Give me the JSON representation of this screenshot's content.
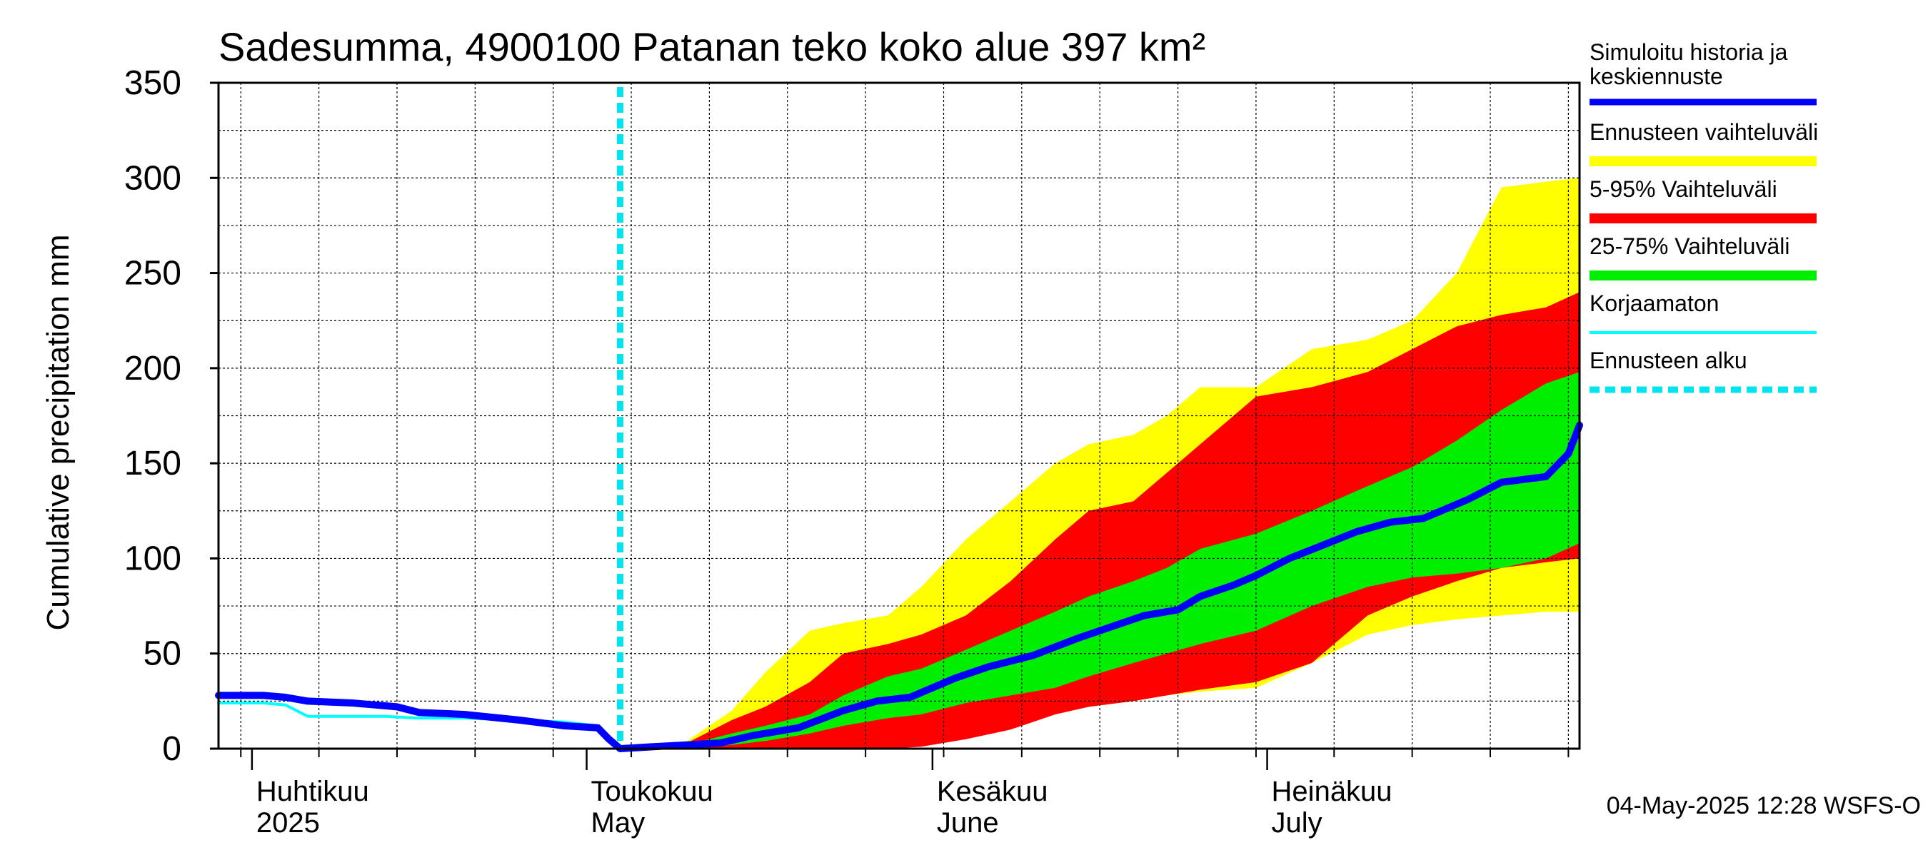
{
  "chart_data": {
    "type": "area",
    "title": "Sadesumma, 4900100 Patanan teko koko alue 397 km²",
    "ylabel": "Cumulative precipitation   mm",
    "ylim": [
      0,
      350
    ],
    "y_ticks": [
      0,
      50,
      100,
      150,
      200,
      250,
      300,
      350
    ],
    "xlim": [
      "2025-03-29",
      "2025-07-29"
    ],
    "grid": true,
    "legend_position": "right",
    "month_labels": [
      {
        "fi": "Huhtikuu",
        "en": "2025",
        "date": "2025-04-01"
      },
      {
        "fi": "Toukokuu",
        "en": "May",
        "date": "2025-05-01"
      },
      {
        "fi": "Kesäkuu",
        "en": "June",
        "date": "2025-06-01"
      },
      {
        "fi": "Heinäkuu",
        "en": "July",
        "date": "2025-07-01"
      }
    ],
    "forecast_start": "2025-05-04",
    "timestamp": "04-May-2025 12:28 WSFS-O",
    "colors": {
      "median": "#0000ff",
      "band_full": "#ffff00",
      "band_5_95": "#ff0000",
      "band_25_75": "#00ee00",
      "uncorrected": "#00ffff",
      "forecast_start": "#00e5ee"
    },
    "legend": [
      {
        "label": "Simuloitu historia ja",
        "label2": "keskiennuste",
        "kind": "median"
      },
      {
        "label": "Ennusteen vaihteluväli",
        "kind": "band_full"
      },
      {
        "label": "5-95% Vaihteluväli",
        "kind": "band_5_95"
      },
      {
        "label": "25-75% Vaihteluväli",
        "kind": "band_25_75"
      },
      {
        "label": "Korjaamaton",
        "kind": "uncorrected"
      },
      {
        "label": "Ennusteen alku",
        "kind": "forecast_start"
      }
    ],
    "series": [
      {
        "name": "Simuloitu historia ja keskiennuste",
        "x": [
          "2025-03-29",
          "2025-04-02",
          "2025-04-04",
          "2025-04-06",
          "2025-04-10",
          "2025-04-12",
          "2025-04-14",
          "2025-04-16",
          "2025-04-20",
          "2025-04-25",
          "2025-04-29",
          "2025-05-02",
          "2025-05-03",
          "2025-05-04",
          "2025-05-07",
          "2025-05-10",
          "2025-05-13",
          "2025-05-16",
          "2025-05-20",
          "2025-05-24",
          "2025-05-27",
          "2025-05-30",
          "2025-06-03",
          "2025-06-06",
          "2025-06-10",
          "2025-06-14",
          "2025-06-17",
          "2025-06-20",
          "2025-06-23",
          "2025-06-25",
          "2025-06-28",
          "2025-06-30",
          "2025-07-03",
          "2025-07-06",
          "2025-07-09",
          "2025-07-12",
          "2025-07-15",
          "2025-07-19",
          "2025-07-22",
          "2025-07-26",
          "2025-07-28",
          "2025-07-29"
        ],
        "values": [
          28,
          28,
          27,
          25,
          24,
          23,
          22,
          19,
          18,
          15,
          12,
          11,
          5,
          0,
          1,
          2,
          3,
          7,
          11,
          20,
          25,
          27,
          37,
          43,
          49,
          58,
          64,
          70,
          73,
          80,
          86,
          91,
          100,
          107,
          114,
          119,
          121,
          131,
          140,
          143,
          155,
          170
        ]
      },
      {
        "name": "Korjaamaton",
        "x": [
          "2025-03-29",
          "2025-04-02",
          "2025-04-04",
          "2025-04-06",
          "2025-04-10",
          "2025-04-13",
          "2025-04-16",
          "2025-04-20",
          "2025-04-25",
          "2025-04-29",
          "2025-05-02",
          "2025-05-03",
          "2025-05-04"
        ],
        "values": [
          24,
          24,
          23,
          17,
          17,
          17,
          16,
          16,
          15,
          14,
          12,
          5,
          0
        ]
      },
      {
        "name": "Ennusteen vaihteluväli",
        "x": [
          "2025-05-04",
          "2025-05-10",
          "2025-05-14",
          "2025-05-17",
          "2025-05-21",
          "2025-05-24",
          "2025-05-28",
          "2025-05-31",
          "2025-06-04",
          "2025-06-08",
          "2025-06-12",
          "2025-06-15",
          "2025-06-19",
          "2025-06-22",
          "2025-06-25",
          "2025-06-30",
          "2025-07-05",
          "2025-07-10",
          "2025-07-14",
          "2025-07-18",
          "2025-07-22",
          "2025-07-26",
          "2025-07-29"
        ],
        "upper": [
          0,
          4,
          20,
          40,
          62,
          66,
          70,
          85,
          110,
          130,
          150,
          160,
          165,
          175,
          190,
          190,
          210,
          215,
          225,
          250,
          295,
          298,
          300
        ],
        "lower": [
          0,
          0,
          0,
          0,
          0,
          0,
          2,
          4,
          12,
          16,
          18,
          22,
          25,
          28,
          30,
          32,
          45,
          60,
          65,
          68,
          70,
          72,
          72
        ]
      },
      {
        "name": "5-95% Vaihteluväli",
        "x": [
          "2025-05-04",
          "2025-05-10",
          "2025-05-14",
          "2025-05-17",
          "2025-05-21",
          "2025-05-24",
          "2025-05-28",
          "2025-05-31",
          "2025-06-04",
          "2025-06-08",
          "2025-06-12",
          "2025-06-15",
          "2025-06-19",
          "2025-06-22",
          "2025-06-25",
          "2025-06-30",
          "2025-07-05",
          "2025-07-10",
          "2025-07-14",
          "2025-07-18",
          "2025-07-22",
          "2025-07-26",
          "2025-07-29"
        ],
        "upper": [
          0,
          3,
          15,
          22,
          35,
          50,
          55,
          60,
          70,
          88,
          110,
          125,
          130,
          145,
          160,
          185,
          190,
          198,
          210,
          222,
          228,
          232,
          240
        ],
        "lower": [
          0,
          0,
          0,
          0,
          0,
          0,
          0,
          1,
          5,
          10,
          18,
          22,
          25,
          28,
          31,
          35,
          45,
          70,
          80,
          88,
          95,
          98,
          100
        ]
      },
      {
        "name": "25-75% Vaihteluväli",
        "x": [
          "2025-05-04",
          "2025-05-10",
          "2025-05-14",
          "2025-05-17",
          "2025-05-21",
          "2025-05-24",
          "2025-05-28",
          "2025-05-31",
          "2025-06-04",
          "2025-06-08",
          "2025-06-12",
          "2025-06-15",
          "2025-06-19",
          "2025-06-22",
          "2025-06-25",
          "2025-06-30",
          "2025-07-05",
          "2025-07-10",
          "2025-07-14",
          "2025-07-18",
          "2025-07-22",
          "2025-07-26",
          "2025-07-29"
        ],
        "upper": [
          0,
          2,
          8,
          12,
          18,
          28,
          38,
          42,
          52,
          62,
          72,
          80,
          88,
          95,
          105,
          113,
          125,
          138,
          148,
          162,
          178,
          192,
          198
        ],
        "lower": [
          0,
          0,
          2,
          4,
          8,
          12,
          16,
          18,
          24,
          28,
          32,
          38,
          45,
          50,
          55,
          62,
          75,
          85,
          90,
          92,
          95,
          100,
          108
        ]
      }
    ]
  }
}
